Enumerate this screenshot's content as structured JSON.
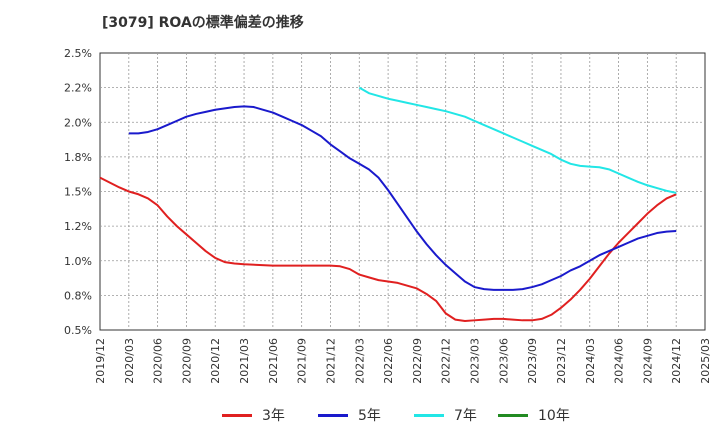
{
  "chart_data": {
    "type": "line",
    "title": "[3079]  ROAの標準偏差の推移",
    "xlabel": "",
    "ylabel": "",
    "x_ticks": [
      "2019/12",
      "2020/03",
      "2020/06",
      "2020/09",
      "2020/12",
      "2021/03",
      "2021/06",
      "2021/09",
      "2021/12",
      "2022/03",
      "2022/06",
      "2022/09",
      "2022/12",
      "2023/03",
      "2023/06",
      "2023/09",
      "2023/12",
      "2024/03",
      "2024/06",
      "2024/09",
      "2024/12",
      "2025/03"
    ],
    "y_ticks": [
      "0.5%",
      "0.8%",
      "1.0%",
      "1.2%",
      "1.5%",
      "1.8%",
      "2.0%",
      "2.2%",
      "2.5%"
    ],
    "y_tick_values": [
      0.5,
      0.75,
      1.0,
      1.25,
      1.5,
      1.75,
      2.0,
      2.25,
      2.5
    ],
    "ylim": [
      0.5,
      2.5
    ],
    "grid": true,
    "legend_position": "bottom",
    "series": [
      {
        "name": "3年",
        "color": "#e02020",
        "points": [
          [
            "2019/12",
            1.6
          ],
          [
            "2020/02",
            1.53
          ],
          [
            "2020/03",
            1.5
          ],
          [
            "2020/04",
            1.48
          ],
          [
            "2020/05",
            1.45
          ],
          [
            "2020/06",
            1.4
          ],
          [
            "2020/07",
            1.32
          ],
          [
            "2020/08",
            1.25
          ],
          [
            "2020/09",
            1.19
          ],
          [
            "2020/10",
            1.13
          ],
          [
            "2020/11",
            1.07
          ],
          [
            "2020/12",
            1.02
          ],
          [
            "2021/01",
            0.99
          ],
          [
            "2021/02",
            0.98
          ],
          [
            "2021/03",
            0.975
          ],
          [
            "2021/06",
            0.965
          ],
          [
            "2021/09",
            0.965
          ],
          [
            "2021/12",
            0.965
          ],
          [
            "2022/01",
            0.96
          ],
          [
            "2022/02",
            0.94
          ],
          [
            "2022/03",
            0.9
          ],
          [
            "2022/04",
            0.88
          ],
          [
            "2022/05",
            0.86
          ],
          [
            "2022/06",
            0.85
          ],
          [
            "2022/07",
            0.84
          ],
          [
            "2022/08",
            0.82
          ],
          [
            "2022/09",
            0.8
          ],
          [
            "2022/10",
            0.76
          ],
          [
            "2022/11",
            0.71
          ],
          [
            "2022/12",
            0.62
          ],
          [
            "2023/01",
            0.575
          ],
          [
            "2023/02",
            0.565
          ],
          [
            "2023/03",
            0.57
          ],
          [
            "2023/04",
            0.575
          ],
          [
            "2023/05",
            0.58
          ],
          [
            "2023/06",
            0.58
          ],
          [
            "2023/07",
            0.575
          ],
          [
            "2023/08",
            0.57
          ],
          [
            "2023/09",
            0.57
          ],
          [
            "2023/10",
            0.58
          ],
          [
            "2023/11",
            0.61
          ],
          [
            "2023/12",
            0.66
          ],
          [
            "2024/01",
            0.72
          ],
          [
            "2024/02",
            0.79
          ],
          [
            "2024/03",
            0.87
          ],
          [
            "2024/04",
            0.96
          ],
          [
            "2024/05",
            1.05
          ],
          [
            "2024/06",
            1.13
          ],
          [
            "2024/07",
            1.2
          ],
          [
            "2024/08",
            1.27
          ],
          [
            "2024/09",
            1.34
          ],
          [
            "2024/10",
            1.4
          ],
          [
            "2024/11",
            1.45
          ],
          [
            "2024/12",
            1.48
          ]
        ]
      },
      {
        "name": "5年",
        "color": "#1a1acc",
        "points": [
          [
            "2020/03",
            1.92
          ],
          [
            "2020/04",
            1.92
          ],
          [
            "2020/05",
            1.93
          ],
          [
            "2020/06",
            1.95
          ],
          [
            "2020/07",
            1.98
          ],
          [
            "2020/08",
            2.01
          ],
          [
            "2020/09",
            2.04
          ],
          [
            "2020/10",
            2.06
          ],
          [
            "2020/11",
            2.075
          ],
          [
            "2020/12",
            2.09
          ],
          [
            "2021/01",
            2.1
          ],
          [
            "2021/02",
            2.11
          ],
          [
            "2021/03",
            2.115
          ],
          [
            "2021/04",
            2.11
          ],
          [
            "2021/05",
            2.09
          ],
          [
            "2021/06",
            2.07
          ],
          [
            "2021/07",
            2.04
          ],
          [
            "2021/08",
            2.01
          ],
          [
            "2021/09",
            1.98
          ],
          [
            "2021/10",
            1.94
          ],
          [
            "2021/11",
            1.9
          ],
          [
            "2021/12",
            1.84
          ],
          [
            "2022/01",
            1.79
          ],
          [
            "2022/02",
            1.74
          ],
          [
            "2022/03",
            1.7
          ],
          [
            "2022/04",
            1.66
          ],
          [
            "2022/05",
            1.6
          ],
          [
            "2022/06",
            1.51
          ],
          [
            "2022/07",
            1.41
          ],
          [
            "2022/08",
            1.31
          ],
          [
            "2022/09",
            1.21
          ],
          [
            "2022/10",
            1.12
          ],
          [
            "2022/11",
            1.04
          ],
          [
            "2022/12",
            0.97
          ],
          [
            "2023/01",
            0.91
          ],
          [
            "2023/02",
            0.85
          ],
          [
            "2023/03",
            0.81
          ],
          [
            "2023/04",
            0.795
          ],
          [
            "2023/05",
            0.79
          ],
          [
            "2023/06",
            0.79
          ],
          [
            "2023/07",
            0.79
          ],
          [
            "2023/08",
            0.795
          ],
          [
            "2023/09",
            0.81
          ],
          [
            "2023/10",
            0.83
          ],
          [
            "2023/11",
            0.86
          ],
          [
            "2023/12",
            0.89
          ],
          [
            "2024/01",
            0.93
          ],
          [
            "2024/02",
            0.96
          ],
          [
            "2024/03",
            1.0
          ],
          [
            "2024/04",
            1.04
          ],
          [
            "2024/05",
            1.07
          ],
          [
            "2024/06",
            1.1
          ],
          [
            "2024/07",
            1.13
          ],
          [
            "2024/08",
            1.16
          ],
          [
            "2024/09",
            1.18
          ],
          [
            "2024/10",
            1.2
          ],
          [
            "2024/11",
            1.21
          ],
          [
            "2024/12",
            1.215
          ]
        ]
      },
      {
        "name": "7年",
        "color": "#22e6e6",
        "points": [
          [
            "2022/03",
            2.25
          ],
          [
            "2022/04",
            2.21
          ],
          [
            "2022/05",
            2.19
          ],
          [
            "2022/06",
            2.17
          ],
          [
            "2022/07",
            2.155
          ],
          [
            "2022/08",
            2.14
          ],
          [
            "2022/09",
            2.125
          ],
          [
            "2022/10",
            2.11
          ],
          [
            "2022/11",
            2.095
          ],
          [
            "2022/12",
            2.08
          ],
          [
            "2023/01",
            2.06
          ],
          [
            "2023/02",
            2.04
          ],
          [
            "2023/03",
            2.01
          ],
          [
            "2023/04",
            1.98
          ],
          [
            "2023/05",
            1.95
          ],
          [
            "2023/06",
            1.92
          ],
          [
            "2023/07",
            1.89
          ],
          [
            "2023/08",
            1.86
          ],
          [
            "2023/09",
            1.83
          ],
          [
            "2023/10",
            1.8
          ],
          [
            "2023/11",
            1.77
          ],
          [
            "2023/12",
            1.73
          ],
          [
            "2024/01",
            1.7
          ],
          [
            "2024/02",
            1.685
          ],
          [
            "2024/03",
            1.68
          ],
          [
            "2024/04",
            1.675
          ],
          [
            "2024/05",
            1.66
          ],
          [
            "2024/06",
            1.63
          ],
          [
            "2024/07",
            1.6
          ],
          [
            "2024/08",
            1.57
          ],
          [
            "2024/09",
            1.545
          ],
          [
            "2024/10",
            1.525
          ],
          [
            "2024/11",
            1.505
          ],
          [
            "2024/12",
            1.49
          ]
        ]
      },
      {
        "name": "10年",
        "color": "#228b22",
        "points": []
      }
    ]
  }
}
